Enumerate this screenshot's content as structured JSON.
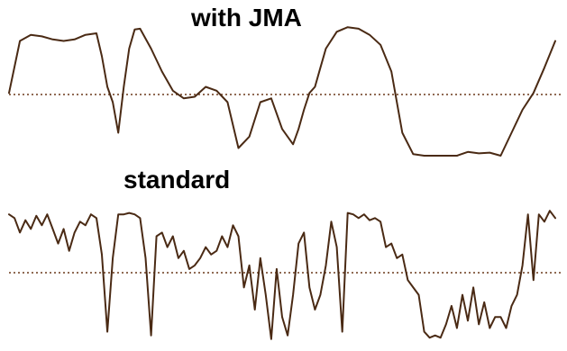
{
  "labels": {
    "top": "with JMA",
    "bottom": "standard"
  },
  "colors": {
    "line": "#4a2a14",
    "reference": "#6b3a1c",
    "background": "#ffffff",
    "text": "#000000"
  },
  "chart_data": [
    {
      "type": "line",
      "title": "with JMA",
      "xlabel": "",
      "ylabel": "",
      "grid": false,
      "reference_line": {
        "value": 0,
        "style": "dotted"
      },
      "ylim": [
        -1,
        1
      ],
      "xlim": [
        0,
        100
      ],
      "series": [
        {
          "x": [
            0,
            2,
            4,
            6,
            8,
            10,
            12,
            14,
            16,
            17,
            18,
            19,
            20,
            21,
            22,
            23,
            24,
            26,
            28,
            30,
            32,
            34,
            36,
            38,
            40,
            42,
            44,
            46,
            48,
            50,
            52,
            53,
            54,
            55,
            56,
            57,
            58,
            60,
            62,
            64,
            66,
            68,
            70,
            72,
            74,
            76,
            78,
            80,
            82,
            84,
            86,
            88,
            90,
            92,
            94,
            96,
            98,
            100
          ],
          "y": [
            0.02,
            0.7,
            0.78,
            0.76,
            0.72,
            0.7,
            0.72,
            0.78,
            0.8,
            0.5,
            0.1,
            -0.1,
            -0.5,
            0.1,
            0.6,
            0.85,
            0.86,
            0.6,
            0.3,
            0.05,
            -0.05,
            -0.03,
            0.1,
            0.05,
            -0.1,
            -0.7,
            -0.55,
            -0.1,
            -0.05,
            -0.45,
            -0.65,
            -0.45,
            -0.2,
            0.02,
            0.1,
            0.35,
            0.6,
            0.82,
            0.88,
            0.86,
            0.78,
            0.65,
            0.3,
            -0.5,
            -0.78,
            -0.8,
            -0.8,
            -0.8,
            -0.8,
            -0.75,
            -0.77,
            -0.76,
            -0.8,
            -0.5,
            -0.2,
            0.02,
            0.35,
            0.7
          ]
        }
      ]
    },
    {
      "type": "line",
      "title": "standard",
      "xlabel": "",
      "ylabel": "",
      "grid": false,
      "reference_line": {
        "value": 0,
        "style": "dotted"
      },
      "ylim": [
        -1,
        1
      ],
      "xlim": [
        0,
        100
      ],
      "series": [
        {
          "x": [
            0,
            1,
            2,
            3,
            4,
            5,
            6,
            7,
            8,
            9,
            10,
            11,
            12,
            13,
            14,
            15,
            16,
            17,
            18,
            19,
            20,
            21,
            22,
            23,
            24,
            25,
            26,
            27,
            28,
            29,
            30,
            31,
            32,
            33,
            34,
            35,
            36,
            37,
            38,
            39,
            40,
            41,
            42,
            43,
            44,
            45,
            46,
            47,
            48,
            49,
            50,
            51,
            52,
            53,
            54,
            55,
            56,
            57,
            58,
            59,
            60,
            61,
            62,
            63,
            64,
            65,
            66,
            67,
            68,
            69,
            70,
            71,
            72,
            73,
            74,
            75,
            76,
            77,
            78,
            79,
            80,
            81,
            82,
            83,
            84,
            85,
            86,
            87,
            88,
            89,
            90,
            91,
            92,
            93,
            94,
            95,
            96,
            97,
            98,
            99,
            100
          ],
          "y": [
            0.8,
            0.75,
            0.55,
            0.72,
            0.6,
            0.78,
            0.65,
            0.8,
            0.6,
            0.4,
            0.6,
            0.3,
            0.55,
            0.7,
            0.65,
            0.8,
            0.75,
            0.25,
            -0.8,
            0.2,
            0.8,
            0.8,
            0.82,
            0.8,
            0.75,
            0.2,
            -0.85,
            0.5,
            0.55,
            0.35,
            0.5,
            0.2,
            0.3,
            0.05,
            0.1,
            0.2,
            0.35,
            0.25,
            0.3,
            0.5,
            0.35,
            0.65,
            0.5,
            -0.2,
            0.1,
            -0.5,
            0.2,
            -0.3,
            -0.9,
            0.05,
            -0.6,
            -0.85,
            -0.3,
            0.4,
            0.55,
            -0.2,
            -0.5,
            -0.3,
            0.1,
            0.7,
            0.35,
            -0.8,
            0.82,
            0.8,
            0.75,
            0.8,
            0.72,
            0.75,
            0.7,
            0.35,
            0.4,
            0.2,
            0.25,
            -0.1,
            -0.2,
            -0.3,
            -0.8,
            -0.88,
            -0.85,
            -0.88,
            -0.7,
            -0.45,
            -0.75,
            -0.3,
            -0.65,
            -0.2,
            -0.7,
            -0.4,
            -0.75,
            -0.6,
            -0.6,
            -0.75,
            -0.45,
            -0.3,
            0.1,
            0.8,
            -0.1,
            0.8,
            0.7,
            0.85,
            0.75
          ]
        }
      ]
    }
  ]
}
